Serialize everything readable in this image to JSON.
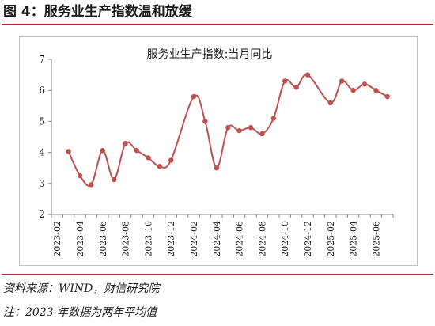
{
  "figure": {
    "title": "图 4：服务业生产指数温和放缓",
    "source_note": "资料来源：WIND，财信研究院",
    "footnote": "注：2023 年数据为两年平均值"
  },
  "colors": {
    "rule": "#a32b2b",
    "series": "#c0504d",
    "axis": "#868686",
    "text": "#1a1a1a"
  },
  "chart_data": {
    "type": "line",
    "title": "服务业生产指数:当月同比",
    "xlabel": "",
    "ylabel": "",
    "ylim": [
      2,
      7
    ],
    "yticks": [
      "2",
      "3",
      "4",
      "5",
      "6",
      "7"
    ],
    "grid": false,
    "legend": "none",
    "x": [
      "2023-02",
      "2023-03",
      "2023-04",
      "2023-05",
      "2023-06",
      "2023-07",
      "2023-08",
      "2023-09",
      "2023-10",
      "2023-11",
      "2023-12",
      "2024-01",
      "2024-02",
      "2024-03",
      "2024-04",
      "2024-05",
      "2024-06",
      "2024-07",
      "2024-08",
      "2024-09",
      "2024-10",
      "2024-11",
      "2024-12",
      "2025-01",
      "2025-02",
      "2025-03",
      "2025-04",
      "2025-05",
      "2025-06",
      "2025-07"
    ],
    "xtick_labels": [
      "2023-02",
      "2023-04",
      "2023-06",
      "2023-08",
      "2023-10",
      "2023-12",
      "2024-02",
      "2024-04",
      "2024-06",
      "2024-08",
      "2024-10",
      "2024-12",
      "2025-02",
      "2025-04",
      "2025-06"
    ],
    "series": [
      {
        "points": [
          {
            "x": "2023-03",
            "y": 4.03
          },
          {
            "x": "2023-04",
            "y": 3.25
          },
          {
            "x": "2023-05",
            "y": 2.96
          },
          {
            "x": "2023-06",
            "y": 4.06
          },
          {
            "x": "2023-07",
            "y": 3.12
          },
          {
            "x": "2023-08",
            "y": 4.29
          },
          {
            "x": "2023-09",
            "y": 4.06
          },
          {
            "x": "2023-10",
            "y": 3.83
          },
          {
            "x": "2023-11",
            "y": 3.55
          },
          {
            "x": "2023-12",
            "y": 3.75
          },
          {
            "x": "2024-02",
            "y": 5.8
          },
          {
            "x": "2024-03",
            "y": 5.0
          },
          {
            "x": "2024-04",
            "y": 3.5
          },
          {
            "x": "2024-05",
            "y": 4.8
          },
          {
            "x": "2024-06",
            "y": 4.7
          },
          {
            "x": "2024-07",
            "y": 4.8
          },
          {
            "x": "2024-08",
            "y": 4.6
          },
          {
            "x": "2024-09",
            "y": 5.1
          },
          {
            "x": "2024-10",
            "y": 6.3
          },
          {
            "x": "2024-11",
            "y": 6.1
          },
          {
            "x": "2024-12",
            "y": 6.5
          },
          {
            "x": "2025-02",
            "y": 5.6
          },
          {
            "x": "2025-03",
            "y": 6.3
          },
          {
            "x": "2025-04",
            "y": 6.0
          },
          {
            "x": "2025-05",
            "y": 6.2
          },
          {
            "x": "2025-06",
            "y": 6.0
          },
          {
            "x": "2025-07",
            "y": 5.8
          }
        ]
      }
    ]
  }
}
